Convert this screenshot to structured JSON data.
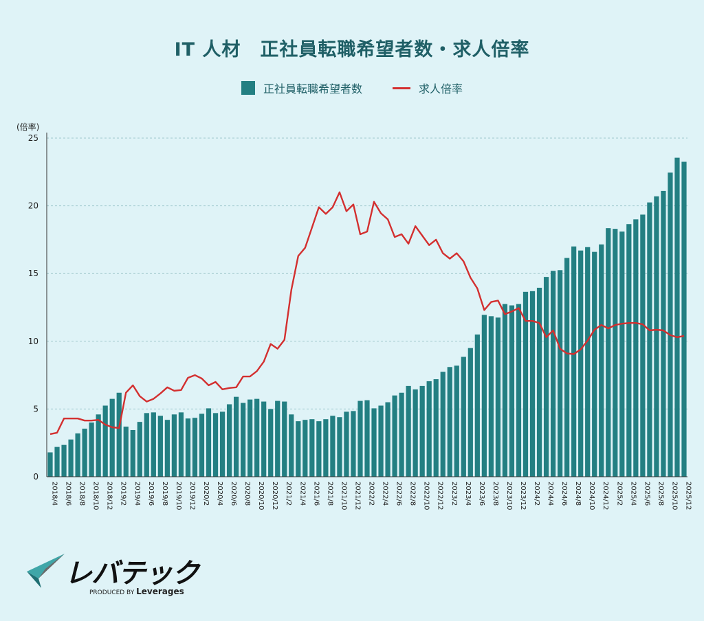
{
  "chart_data": {
    "type": "bar+line",
    "title": "IT 人材　正社員転職希望者数・求人倍率",
    "ylabel": "(倍率)",
    "ylim": [
      0,
      25
    ],
    "yticks": [
      0,
      5,
      10,
      15,
      20,
      25
    ],
    "grid": true,
    "legend_position": "top-center",
    "x": [
      "2018/4",
      "2018/5",
      "2018/6",
      "2018/7",
      "2018/8",
      "2018/9",
      "2018/10",
      "2018/11",
      "2018/12",
      "2019/1",
      "2019/2",
      "2019/3",
      "2019/4",
      "2019/5",
      "2019/6",
      "2019/7",
      "2019/8",
      "2019/9",
      "2019/10",
      "2019/11",
      "2019/12",
      "2020/1",
      "2020/2",
      "2020/3",
      "2020/4",
      "2020/5",
      "2020/6",
      "2020/7",
      "2020/8",
      "2020/9",
      "2020/10",
      "2020/11",
      "2020/12",
      "2021/1",
      "2021/2",
      "2021/3",
      "2021/4",
      "2021/5",
      "2021/6",
      "2021/7",
      "2021/8",
      "2021/9",
      "2021/10",
      "2021/11",
      "2021/12",
      "2022/1",
      "2022/2",
      "2022/3",
      "2022/4",
      "2022/5",
      "2022/6",
      "2022/7",
      "2022/8",
      "2022/9",
      "2022/10",
      "2022/11",
      "2022/12",
      "2023/1",
      "2023/2",
      "2023/3",
      "2023/4",
      "2023/5",
      "2023/6",
      "2023/7",
      "2023/8",
      "2023/9",
      "2023/10",
      "2023/11",
      "2023/12",
      "2024/1",
      "2024/2",
      "2024/3",
      "2024/4",
      "2024/5",
      "2024/6",
      "2024/7",
      "2024/8",
      "2024/9",
      "2024/10",
      "2024/11",
      "2024/12",
      "2025/1",
      "2025/2",
      "2025/3",
      "2025/4",
      "2025/5",
      "2025/6",
      "2025/7",
      "2025/8",
      "2025/9",
      "2025/10",
      "2025/11",
      "2025/12"
    ],
    "xtick_labels": [
      "2018/4",
      "2018/6",
      "2018/8",
      "2018/10",
      "2018/12",
      "2019/2",
      "2019/4",
      "2019/6",
      "2019/8",
      "2019/10",
      "2019/12",
      "2020/2",
      "2020/4",
      "2020/6",
      "2020/8",
      "2020/10",
      "2020/12",
      "2021/2",
      "2021/4",
      "2021/6",
      "2021/8",
      "2021/10",
      "2021/12",
      "2022/2",
      "2022/4",
      "2022/6",
      "2022/8",
      "2022/10",
      "2022/12",
      "2023/2",
      "2023/4",
      "2023/6",
      "2023/8",
      "2023/10",
      "2023/12",
      "2024/2",
      "2024/4",
      "2024/6",
      "2024/8",
      "2024/10",
      "2024/12",
      "2025/2",
      "2025/4",
      "2025/6",
      "2025/8",
      "2025/10",
      "2025/12"
    ],
    "series": [
      {
        "name": "正社員転職希望者数",
        "type": "bar",
        "color": "#237f82",
        "values": [
          1.8,
          2.2,
          2.35,
          2.75,
          3.2,
          3.55,
          4.0,
          4.6,
          5.25,
          5.75,
          6.2,
          3.7,
          3.45,
          4.05,
          4.7,
          4.75,
          4.5,
          4.2,
          4.6,
          4.75,
          4.3,
          4.35,
          4.65,
          5.05,
          4.7,
          4.8,
          5.35,
          5.9,
          5.45,
          5.7,
          5.75,
          5.55,
          5.0,
          5.6,
          5.55,
          4.6,
          4.1,
          4.2,
          4.25,
          4.1,
          4.25,
          4.5,
          4.4,
          4.8,
          4.85,
          5.6,
          5.65,
          5.05,
          5.25,
          5.5,
          6.0,
          6.2,
          6.7,
          6.45,
          6.7,
          7.05,
          7.2,
          7.75,
          8.1,
          8.2,
          8.85,
          9.5,
          10.5,
          11.95,
          11.85,
          11.75,
          12.75,
          12.65,
          12.75,
          13.65,
          13.7,
          13.95,
          14.75,
          15.2,
          15.25,
          16.15,
          17.0,
          16.7,
          16.95,
          16.6,
          17.15,
          18.35,
          18.3,
          18.1,
          18.65,
          19.0,
          19.35,
          20.25,
          20.7,
          21.1,
          22.45,
          23.55,
          23.25
        ]
      },
      {
        "name": "求人倍率",
        "type": "line",
        "color": "#d32f2f",
        "values": [
          3.15,
          3.25,
          4.3,
          4.3,
          4.3,
          4.15,
          4.15,
          4.2,
          3.85,
          3.65,
          3.6,
          6.2,
          6.75,
          5.95,
          5.55,
          5.75,
          6.15,
          6.6,
          6.35,
          6.4,
          7.3,
          7.5,
          7.25,
          6.75,
          7.0,
          6.45,
          6.55,
          6.6,
          7.4,
          7.4,
          7.8,
          8.5,
          9.8,
          9.45,
          10.1,
          13.8,
          16.3,
          16.9,
          18.4,
          19.9,
          19.4,
          19.9,
          21.0,
          19.6,
          20.1,
          17.9,
          18.1,
          20.3,
          19.45,
          19.0,
          17.7,
          17.9,
          17.2,
          18.5,
          17.8,
          17.1,
          17.5,
          16.5,
          16.1,
          16.5,
          15.9,
          14.7,
          13.9,
          12.3,
          12.9,
          13.0,
          12.0,
          12.2,
          12.45,
          11.5,
          11.5,
          11.35,
          10.3,
          10.8,
          9.45,
          9.1,
          9.05,
          9.4,
          10.05,
          10.85,
          11.2,
          10.95,
          11.2,
          11.3,
          11.35,
          11.35,
          11.25,
          10.8,
          10.85,
          10.8,
          10.45,
          10.3,
          10.4
        ]
      }
    ]
  },
  "logo": {
    "wordmark": "レバテック",
    "produced_by": "PRODUCED BY",
    "company": "Leverages"
  }
}
